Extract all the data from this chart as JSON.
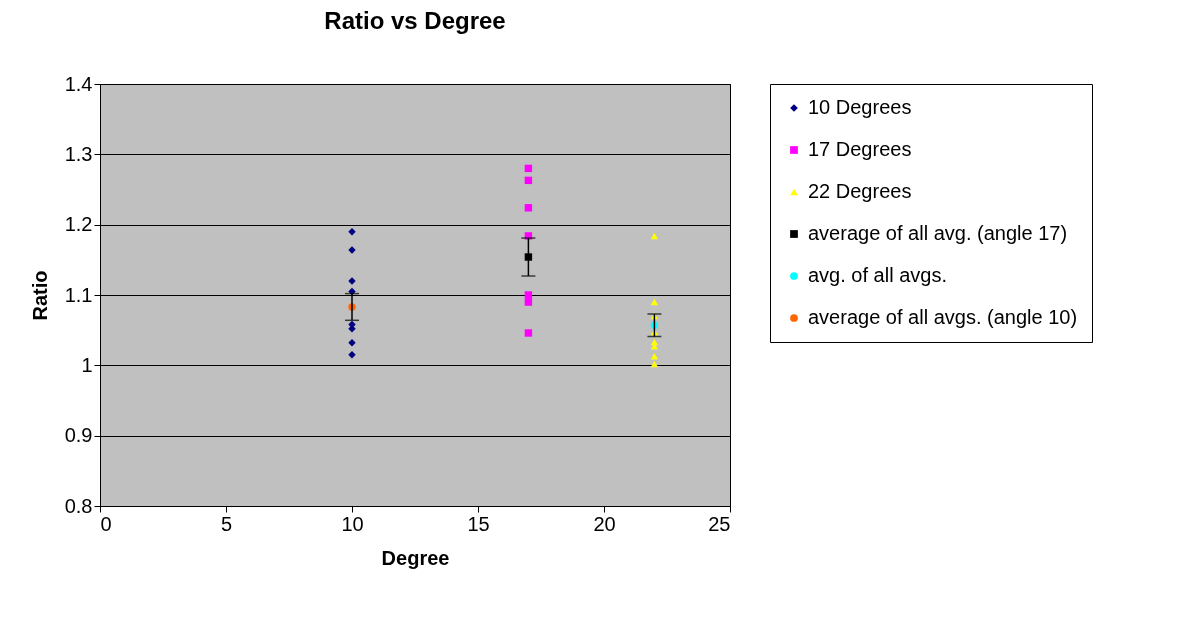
{
  "chart_data": {
    "type": "scatter",
    "title": "Ratio vs Degree",
    "xlabel": "Degree",
    "ylabel": "Ratio",
    "xlim": [
      0,
      25
    ],
    "xticks": [
      0,
      5,
      10,
      15,
      20,
      25
    ],
    "ylim": [
      0.8,
      1.4
    ],
    "yticks": [
      0.8,
      0.9,
      1,
      1.1,
      1.2,
      1.3,
      1.4
    ],
    "grid": "y",
    "legend": "right",
    "series": [
      {
        "name": "10 Degrees",
        "color": "#000080",
        "marker": "diamond",
        "x": [
          10,
          10,
          10,
          10,
          10,
          10,
          10,
          10
        ],
        "values": [
          1.19,
          1.164,
          1.12,
          1.105,
          1.058,
          1.052,
          1.032,
          1.015
        ]
      },
      {
        "name": "17 Degrees",
        "color": "#ff00ff",
        "marker": "square",
        "x": [
          17,
          17,
          17,
          17,
          17,
          17,
          17
        ],
        "values": [
          1.28,
          1.263,
          1.224,
          1.184,
          1.1,
          1.09,
          1.046
        ]
      },
      {
        "name": "22 Degrees",
        "color": "#ffff00",
        "marker": "triangle",
        "x": [
          22,
          22,
          22,
          22,
          22,
          22,
          22,
          22
        ],
        "values": [
          1.184,
          1.09,
          1.07,
          1.047,
          1.033,
          1.027,
          1.013,
          1.002
        ]
      },
      {
        "name": "average of all avg. (angle 17)",
        "color": "#000000",
        "marker": "square",
        "x": [
          17
        ],
        "values": [
          1.154
        ],
        "errors": [
          0.027
        ]
      },
      {
        "name": "avg. of all avgs.",
        "color": "#00ffff",
        "marker": "circle",
        "x": [
          22
        ],
        "values": [
          1.057
        ],
        "errors": [
          0.016
        ]
      },
      {
        "name": "average of all avgs. (angle 10)",
        "color": "#ff6600",
        "marker": "circle",
        "x": [
          10
        ],
        "values": [
          1.083
        ],
        "errors": [
          0.019
        ]
      }
    ]
  }
}
